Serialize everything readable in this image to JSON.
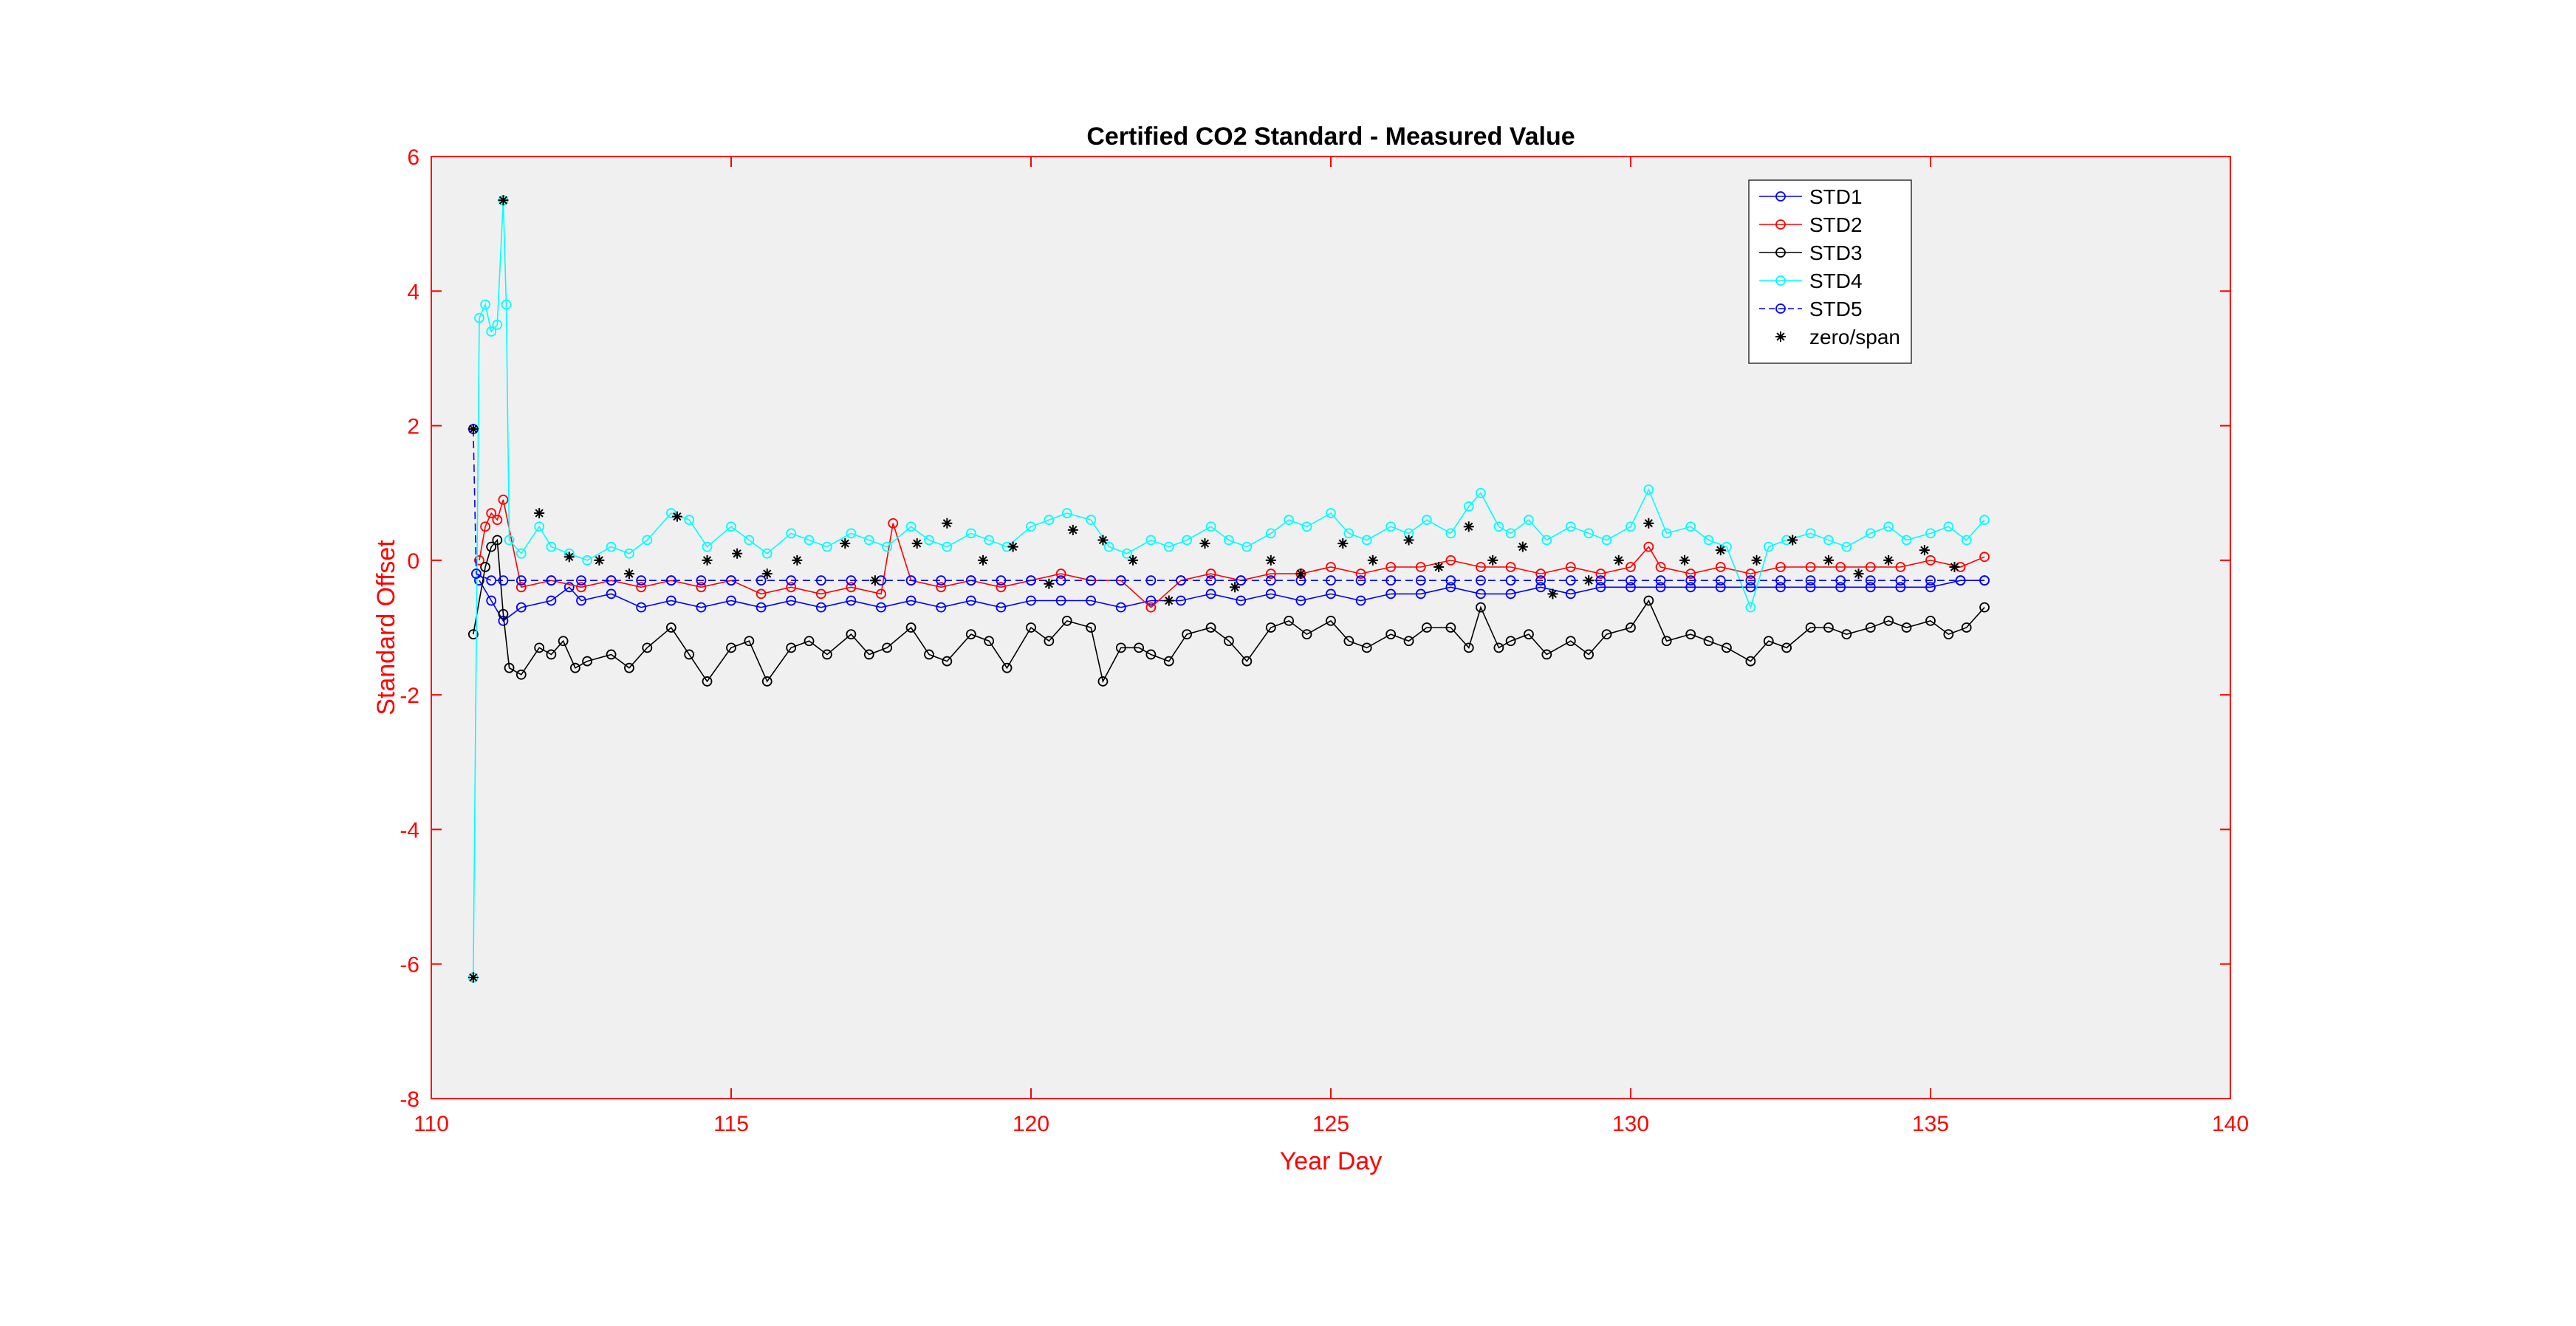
{
  "chart_data": {
    "type": "line",
    "title": "Certified CO2 Standard - Measured Value",
    "xlabel": "Year Day",
    "ylabel": "Standard Offset",
    "xlim": [
      110,
      140
    ],
    "ylim": [
      -8,
      6
    ],
    "xticks": [
      110,
      115,
      120,
      125,
      130,
      135,
      140
    ],
    "yticks": [
      -8,
      -6,
      -4,
      -2,
      0,
      2,
      4,
      6
    ],
    "grid": false,
    "legend_position": "top-right",
    "colors": {
      "axes": "#ff0000",
      "plot_bg": "#f0f0f0",
      "title": "#000000"
    },
    "series": [
      {
        "name": "STD1",
        "color": "#0000ff",
        "line_style": "solid",
        "marker": "circle",
        "x": [
          110.8,
          111.0,
          111.2,
          111.5,
          112.0,
          112.3,
          112.5,
          113.0,
          113.5,
          114.0,
          114.5,
          115.0,
          115.5,
          116.0,
          116.5,
          117.0,
          117.5,
          118.0,
          118.5,
          119.0,
          119.5,
          120.0,
          120.5,
          121.0,
          121.5,
          122.0,
          122.5,
          123.0,
          123.5,
          124.0,
          124.5,
          125.0,
          125.5,
          126.0,
          126.5,
          127.0,
          127.5,
          128.0,
          128.5,
          129.0,
          129.5,
          130.0,
          130.5,
          131.0,
          131.5,
          132.0,
          132.5,
          133.0,
          133.5,
          134.0,
          134.5,
          135.0,
          135.5,
          135.9
        ],
        "y": [
          -0.3,
          -0.6,
          -0.9,
          -0.7,
          -0.6,
          -0.4,
          -0.6,
          -0.5,
          -0.7,
          -0.6,
          -0.7,
          -0.6,
          -0.7,
          -0.6,
          -0.7,
          -0.6,
          -0.7,
          -0.6,
          -0.7,
          -0.6,
          -0.7,
          -0.6,
          -0.6,
          -0.6,
          -0.7,
          -0.6,
          -0.6,
          -0.5,
          -0.6,
          -0.5,
          -0.6,
          -0.5,
          -0.6,
          -0.5,
          -0.5,
          -0.4,
          -0.5,
          -0.5,
          -0.4,
          -0.5,
          -0.4,
          -0.4,
          -0.4,
          -0.4,
          -0.4,
          -0.4,
          -0.4,
          -0.4,
          -0.4,
          -0.4,
          -0.4,
          -0.4,
          -0.3,
          -0.3
        ]
      },
      {
        "name": "STD2",
        "color": "#ff0000",
        "line_style": "solid",
        "marker": "circle",
        "x": [
          110.8,
          110.9,
          111.0,
          111.1,
          111.2,
          111.5,
          112.0,
          112.5,
          113.0,
          113.5,
          114.0,
          114.5,
          115.0,
          115.5,
          116.0,
          116.5,
          117.0,
          117.5,
          117.7,
          118.0,
          118.5,
          119.0,
          119.5,
          120.0,
          120.5,
          121.0,
          121.5,
          122.0,
          122.5,
          123.0,
          123.5,
          124.0,
          124.5,
          125.0,
          125.5,
          126.0,
          126.5,
          127.0,
          127.5,
          128.0,
          128.5,
          129.0,
          129.5,
          130.0,
          130.3,
          130.5,
          131.0,
          131.5,
          132.0,
          132.5,
          133.0,
          133.5,
          134.0,
          134.5,
          135.0,
          135.5,
          135.9
        ],
        "y": [
          0.0,
          0.5,
          0.7,
          0.6,
          0.9,
          -0.4,
          -0.3,
          -0.4,
          -0.3,
          -0.4,
          -0.3,
          -0.4,
          -0.3,
          -0.5,
          -0.4,
          -0.5,
          -0.4,
          -0.5,
          0.55,
          -0.3,
          -0.4,
          -0.3,
          -0.4,
          -0.3,
          -0.2,
          -0.3,
          -0.3,
          -0.7,
          -0.3,
          -0.2,
          -0.3,
          -0.2,
          -0.2,
          -0.1,
          -0.2,
          -0.1,
          -0.1,
          0.0,
          -0.1,
          -0.1,
          -0.2,
          -0.1,
          -0.2,
          -0.1,
          0.2,
          -0.1,
          -0.2,
          -0.1,
          -0.2,
          -0.1,
          -0.1,
          -0.1,
          -0.1,
          -0.1,
          0.0,
          -0.1,
          0.05
        ]
      },
      {
        "name": "STD3",
        "color": "#000000",
        "line_style": "solid",
        "marker": "circle",
        "x": [
          110.7,
          110.9,
          111.0,
          111.1,
          111.2,
          111.3,
          111.5,
          111.8,
          112.0,
          112.2,
          112.4,
          112.6,
          113.0,
          113.3,
          113.6,
          114.0,
          114.3,
          114.6,
          115.0,
          115.3,
          115.6,
          116.0,
          116.3,
          116.6,
          117.0,
          117.3,
          117.6,
          118.0,
          118.3,
          118.6,
          119.0,
          119.3,
          119.6,
          120.0,
          120.3,
          120.6,
          121.0,
          121.2,
          121.5,
          121.8,
          122.0,
          122.3,
          122.6,
          123.0,
          123.3,
          123.6,
          124.0,
          124.3,
          124.6,
          125.0,
          125.3,
          125.6,
          126.0,
          126.3,
          126.6,
          127.0,
          127.3,
          127.5,
          127.8,
          128.0,
          128.3,
          128.6,
          129.0,
          129.3,
          129.6,
          130.0,
          130.3,
          130.6,
          131.0,
          131.3,
          131.6,
          132.0,
          132.3,
          132.6,
          133.0,
          133.3,
          133.6,
          134.0,
          134.3,
          134.6,
          135.0,
          135.3,
          135.6,
          135.9
        ],
        "y": [
          -1.1,
          -0.1,
          0.2,
          0.3,
          -0.8,
          -1.6,
          -1.7,
          -1.3,
          -1.4,
          -1.2,
          -1.6,
          -1.5,
          -1.4,
          -1.6,
          -1.3,
          -1.0,
          -1.4,
          -1.8,
          -1.3,
          -1.2,
          -1.8,
          -1.3,
          -1.2,
          -1.4,
          -1.1,
          -1.4,
          -1.3,
          -1.0,
          -1.4,
          -1.5,
          -1.1,
          -1.2,
          -1.6,
          -1.0,
          -1.2,
          -0.9,
          -1.0,
          -1.8,
          -1.3,
          -1.3,
          -1.4,
          -1.5,
          -1.1,
          -1.0,
          -1.2,
          -1.5,
          -1.0,
          -0.9,
          -1.1,
          -0.9,
          -1.2,
          -1.3,
          -1.1,
          -1.2,
          -1.0,
          -1.0,
          -1.3,
          -0.7,
          -1.3,
          -1.2,
          -1.1,
          -1.4,
          -1.2,
          -1.4,
          -1.1,
          -1.0,
          -0.6,
          -1.2,
          -1.1,
          -1.2,
          -1.3,
          -1.5,
          -1.2,
          -1.3,
          -1.0,
          -1.0,
          -1.1,
          -1.0,
          -0.9,
          -1.0,
          -0.9,
          -1.1,
          -1.0,
          -0.7
        ]
      },
      {
        "name": "STD4",
        "color": "#00ffff",
        "line_style": "solid",
        "marker": "circle",
        "x": [
          110.7,
          110.8,
          110.9,
          111.0,
          111.1,
          111.2,
          111.25,
          111.3,
          111.5,
          111.8,
          112.0,
          112.3,
          112.6,
          113.0,
          113.3,
          113.6,
          114.0,
          114.3,
          114.6,
          115.0,
          115.3,
          115.6,
          116.0,
          116.3,
          116.6,
          117.0,
          117.3,
          117.6,
          118.0,
          118.3,
          118.6,
          119.0,
          119.3,
          119.6,
          120.0,
          120.3,
          120.6,
          121.0,
          121.3,
          121.6,
          122.0,
          122.3,
          122.6,
          123.0,
          123.3,
          123.6,
          124.0,
          124.3,
          124.6,
          125.0,
          125.3,
          125.6,
          126.0,
          126.3,
          126.6,
          127.0,
          127.3,
          127.5,
          127.8,
          128.0,
          128.3,
          128.6,
          129.0,
          129.3,
          129.6,
          130.0,
          130.3,
          130.6,
          131.0,
          131.3,
          131.6,
          132.0,
          132.3,
          132.6,
          133.0,
          133.3,
          133.6,
          134.0,
          134.3,
          134.6,
          135.0,
          135.3,
          135.6,
          135.9
        ],
        "y": [
          -6.2,
          3.6,
          3.8,
          3.4,
          3.5,
          5.35,
          3.8,
          0.3,
          0.1,
          0.5,
          0.2,
          0.1,
          0.0,
          0.2,
          0.1,
          0.3,
          0.7,
          0.6,
          0.2,
          0.5,
          0.3,
          0.1,
          0.4,
          0.3,
          0.2,
          0.4,
          0.3,
          0.2,
          0.5,
          0.3,
          0.2,
          0.4,
          0.3,
          0.2,
          0.5,
          0.6,
          0.7,
          0.6,
          0.2,
          0.1,
          0.3,
          0.2,
          0.3,
          0.5,
          0.3,
          0.2,
          0.4,
          0.6,
          0.5,
          0.7,
          0.4,
          0.3,
          0.5,
          0.4,
          0.6,
          0.4,
          0.8,
          1.0,
          0.5,
          0.4,
          0.6,
          0.3,
          0.5,
          0.4,
          0.3,
          0.5,
          1.05,
          0.4,
          0.5,
          0.3,
          0.2,
          -0.7,
          0.2,
          0.3,
          0.4,
          0.3,
          0.2,
          0.4,
          0.5,
          0.3,
          0.4,
          0.5,
          0.3,
          0.6
        ]
      },
      {
        "name": "STD5",
        "color": "#0000ff",
        "line_style": "dashed",
        "marker": "circle",
        "x": [
          110.7,
          110.75,
          111.0,
          111.2,
          111.5,
          112.0,
          112.5,
          113.0,
          113.5,
          114.0,
          114.5,
          115.0,
          115.5,
          116.0,
          116.5,
          117.0,
          117.5,
          118.0,
          118.5,
          119.0,
          119.5,
          120.0,
          120.5,
          121.0,
          121.5,
          122.0,
          122.5,
          123.0,
          123.5,
          124.0,
          124.5,
          125.0,
          125.5,
          126.0,
          126.5,
          127.0,
          127.5,
          128.0,
          128.5,
          129.0,
          129.5,
          130.0,
          130.5,
          131.0,
          131.5,
          132.0,
          132.5,
          133.0,
          133.5,
          134.0,
          134.5,
          135.0,
          135.5,
          135.9
        ],
        "y": [
          1.95,
          -0.2,
          -0.3,
          -0.3,
          -0.3,
          -0.3,
          -0.3,
          -0.3,
          -0.3,
          -0.3,
          -0.3,
          -0.3,
          -0.3,
          -0.3,
          -0.3,
          -0.3,
          -0.3,
          -0.3,
          -0.3,
          -0.3,
          -0.3,
          -0.3,
          -0.3,
          -0.3,
          -0.3,
          -0.3,
          -0.3,
          -0.3,
          -0.3,
          -0.3,
          -0.3,
          -0.3,
          -0.3,
          -0.3,
          -0.3,
          -0.3,
          -0.3,
          -0.3,
          -0.3,
          -0.3,
          -0.3,
          -0.3,
          -0.3,
          -0.3,
          -0.3,
          -0.3,
          -0.3,
          -0.3,
          -0.3,
          -0.3,
          -0.3,
          -0.3,
          -0.3,
          -0.3
        ]
      },
      {
        "name": "zero/span",
        "color": "#000000",
        "line_style": "none",
        "marker": "asterisk",
        "x": [
          110.7,
          110.7,
          111.2,
          111.8,
          112.3,
          112.8,
          113.3,
          114.1,
          114.6,
          115.1,
          115.6,
          116.1,
          116.9,
          117.4,
          118.1,
          118.6,
          119.2,
          119.7,
          120.3,
          120.7,
          121.2,
          121.7,
          122.3,
          122.9,
          123.4,
          124.0,
          124.5,
          125.2,
          125.7,
          126.3,
          126.8,
          127.3,
          127.7,
          128.2,
          128.7,
          129.3,
          129.8,
          130.3,
          130.9,
          131.5,
          132.1,
          132.7,
          133.3,
          133.8,
          134.3,
          134.9,
          135.4
        ],
        "y": [
          1.95,
          -6.2,
          5.35,
          0.7,
          0.05,
          0.0,
          -0.2,
          0.65,
          0.0,
          0.1,
          -0.2,
          0.0,
          0.25,
          -0.3,
          0.25,
          0.55,
          0.0,
          0.2,
          -0.35,
          0.45,
          0.3,
          0.0,
          -0.6,
          0.25,
          -0.4,
          0.0,
          -0.2,
          0.25,
          0.0,
          0.3,
          -0.1,
          0.5,
          0.0,
          0.2,
          -0.5,
          -0.3,
          0.0,
          0.55,
          0.0,
          0.15,
          0.0,
          0.3,
          0.0,
          -0.2,
          0.0,
          0.15,
          -0.1
        ]
      }
    ]
  }
}
